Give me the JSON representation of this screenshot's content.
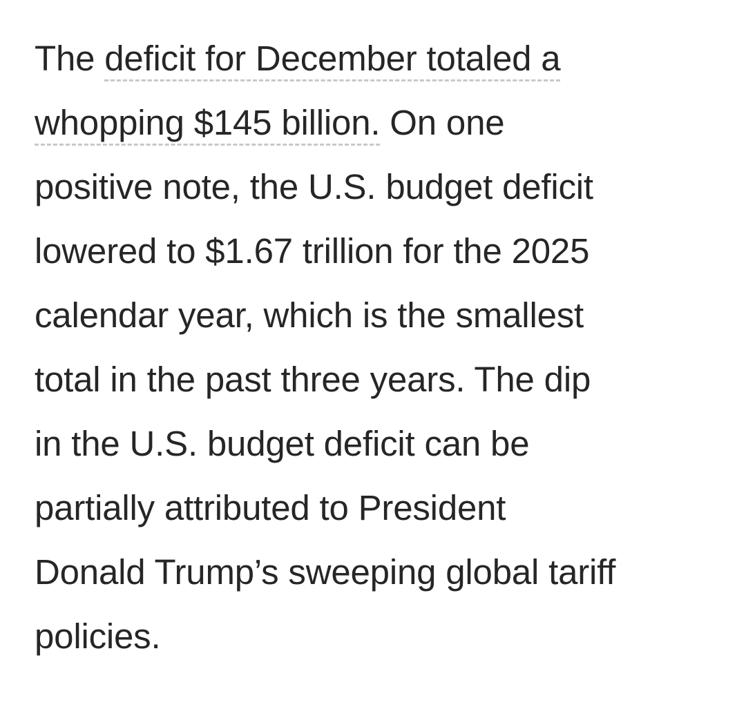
{
  "article": {
    "paragraph_lines": [
      {
        "before": "The ",
        "link": "deficit for December totaled a",
        "after": ""
      },
      {
        "before": "",
        "link": "whopping $145 billion.",
        "after": " On one"
      },
      {
        "before": "positive note, the U.S. budget deficit",
        "link": "",
        "after": ""
      },
      {
        "before": "lowered to $1.67 trillion for the 2025",
        "link": "",
        "after": ""
      },
      {
        "before": "calendar year, which is the smallest",
        "link": "",
        "after": ""
      },
      {
        "before": "total in the past three years. The dip",
        "link": "",
        "after": ""
      },
      {
        "before": "in the U.S. budget deficit can be",
        "link": "",
        "after": ""
      },
      {
        "before": "partially attributed to President",
        "link": "",
        "after": ""
      },
      {
        "before": "Donald Trump’s sweeping global tariff",
        "link": "",
        "after": ""
      },
      {
        "before": "policies.",
        "link": "",
        "after": ""
      }
    ]
  }
}
